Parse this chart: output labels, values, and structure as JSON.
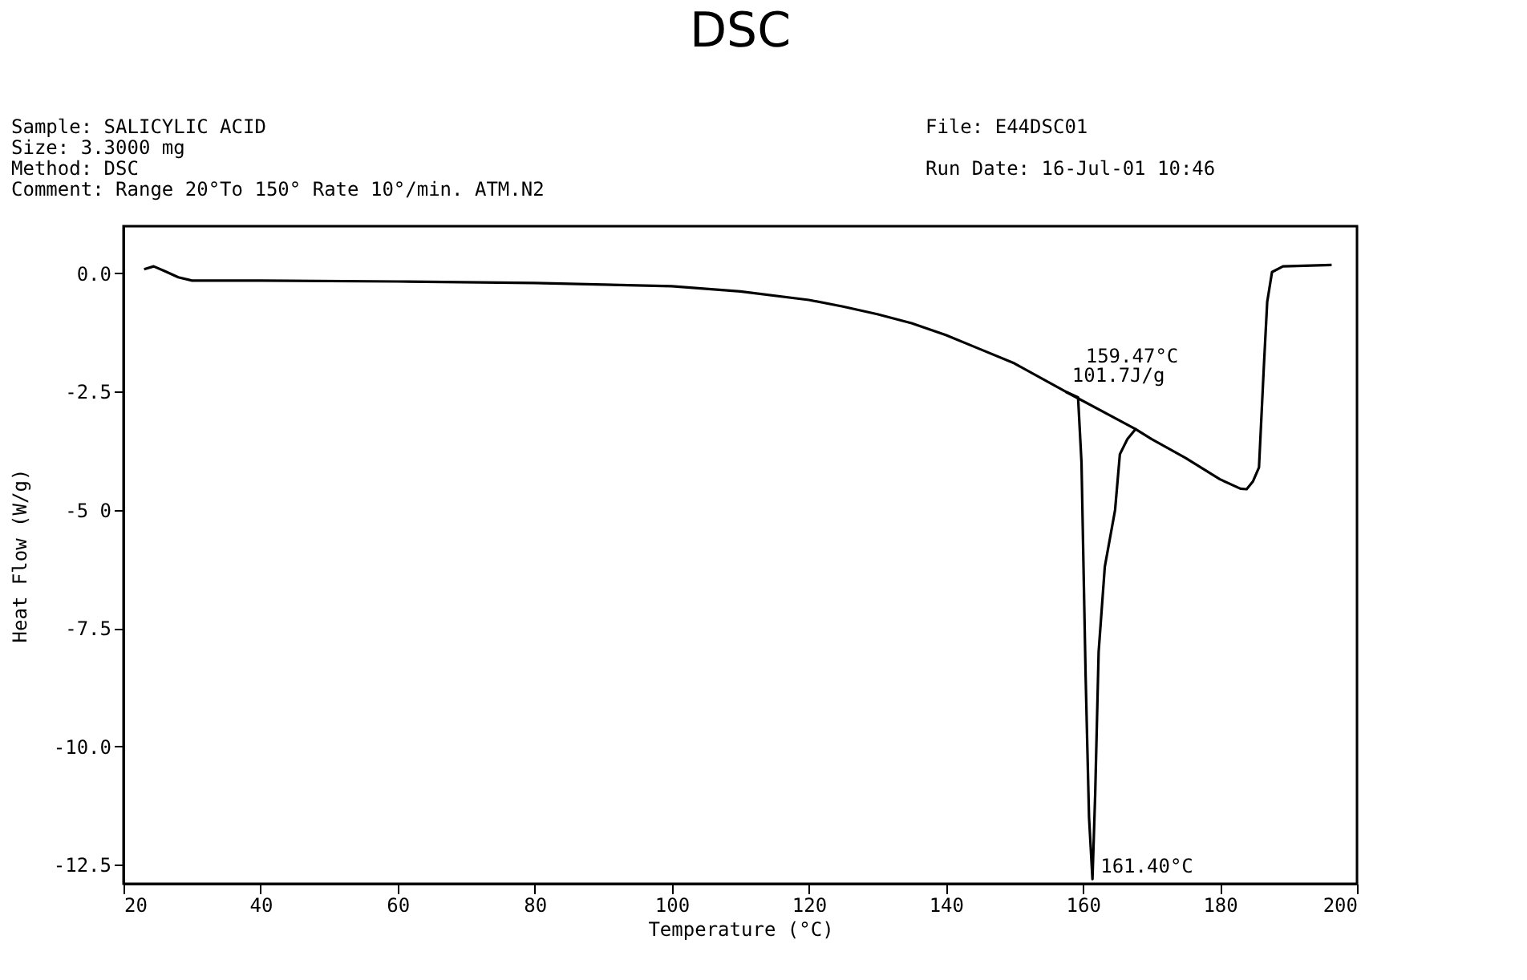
{
  "chart_data": {
    "type": "line",
    "title": "DSC",
    "xlabel": "Temperature (°C)",
    "ylabel": "Heat Flow (W/g)",
    "xlim": [
      20,
      200
    ],
    "xticks": [
      20,
      40,
      60,
      80,
      100,
      120,
      140,
      160,
      180,
      200
    ],
    "ylim": [
      -12.9,
      1.0
    ],
    "yticks": [
      {
        "value": 0,
        "label": "0.0"
      },
      -2.5,
      {
        "value": -5,
        "label": "-5 0"
      },
      -7.5,
      {
        "value": -10,
        "label": "-10.0"
      },
      -12.5
    ],
    "grid": false,
    "legend": false,
    "marker": "none",
    "line_style": "solid",
    "series": [
      {
        "color": "#000000",
        "x": [
          23,
          24.4,
          26,
          28,
          30,
          40,
          60,
          80,
          100,
          110,
          120,
          125,
          130,
          135,
          140,
          145,
          150,
          155,
          157.5,
          159.3,
          159.8,
          160.4,
          160.9,
          161.4,
          161.8,
          162.3,
          163.2,
          164.7,
          165.4,
          166.5,
          167.7,
          170,
          175,
          180,
          183,
          183.9,
          184.8,
          185.7,
          186.4,
          186.9,
          187.6,
          189.2,
          196.3
        ],
        "values": [
          0.09,
          0.15,
          0.05,
          -0.08,
          -0.15,
          -0.15,
          -0.17,
          -0.2,
          -0.27,
          -0.38,
          -0.56,
          -0.7,
          -0.86,
          -1.05,
          -1.3,
          -1.6,
          -1.9,
          -2.3,
          -2.5,
          -2.62,
          -4.0,
          -8.5,
          -11.5,
          -12.8,
          -11.0,
          -8.0,
          -6.2,
          -5.0,
          -3.82,
          -3.5,
          -3.29,
          -3.5,
          -3.9,
          -4.35,
          -4.55,
          -4.56,
          -4.4,
          -4.1,
          -2.0,
          -0.6,
          0.03,
          0.15,
          0.18
        ]
      },
      {
        "color": "#000000",
        "x": [
          157.5,
          167.7
        ],
        "values": [
          -2.5,
          -3.29
        ]
      }
    ],
    "annotations": [
      "Sample: SALICYLIC ACID",
      "Size: 3.3000 mg",
      "Method: DSC",
      "Comment: Range 20°To 150°   Rate 10°/min. ATM.N2",
      "File: E44DSC01",
      "Run Date: 16-Jul-01 10:46",
      {
        "text": "159.47°C",
        "x": 159.47,
        "y": -2.62
      },
      {
        "text": "101.7J/g",
        "x": 157.5,
        "y": -2.5
      },
      {
        "text": "161.40°C",
        "x": 161.4,
        "y": -12.8
      }
    ]
  }
}
